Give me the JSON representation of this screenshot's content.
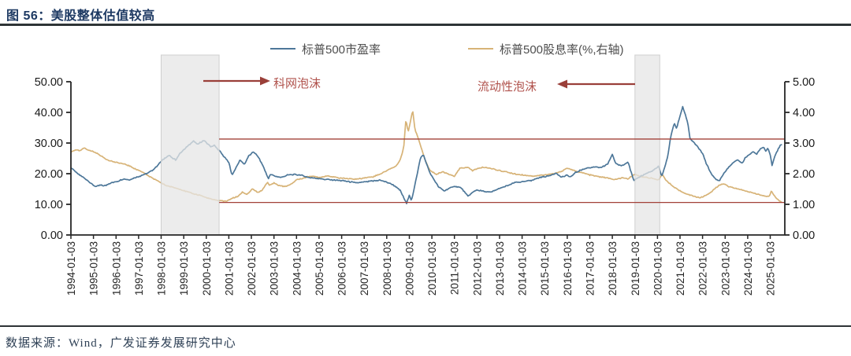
{
  "header": {
    "title": "图 56：美股整体估值较高"
  },
  "legend": {
    "items": [
      {
        "label": "标普500市盈率",
        "color": "#4d7799"
      },
      {
        "label": "标普500股息率(%,右轴)",
        "color": "#d7b377"
      }
    ]
  },
  "annotations": {
    "dotcom": "科网泡沫",
    "liquidity": "流动性泡沫",
    "text_color": "#b0524c",
    "arrow_color": "#9a3f39"
  },
  "footer": {
    "source": "数据来源：Wind，广发证券发展研究中心"
  },
  "chart_data": {
    "type": "line",
    "title": "美股整体估值较高",
    "grid": false,
    "legend_position": "top-center",
    "x_axis": {
      "tick_labels": [
        "1994-01-03",
        "1995-01-03",
        "1996-01-03",
        "1997-01-03",
        "1998-01-03",
        "1999-01-03",
        "2000-01-03",
        "2001-01-03",
        "2002-01-03",
        "2003-01-03",
        "2004-01-03",
        "2005-01-03",
        "2006-01-03",
        "2007-01-03",
        "2008-01-03",
        "2009-01-03",
        "2010-01-03",
        "2011-01-03",
        "2012-01-03",
        "2013-01-03",
        "2014-01-03",
        "2015-01-03",
        "2016-01-03",
        "2017-01-03",
        "2018-01-03",
        "2019-01-03",
        "2020-01-03",
        "2021-01-03",
        "2022-01-03",
        "2023-01-03",
        "2024-01-03",
        "2025-01-03"
      ],
      "start_year": 1994,
      "end_year": 2025.65
    },
    "y_left": {
      "ticks": [
        0,
        10,
        20,
        30,
        40,
        50
      ],
      "lim": [
        0,
        50
      ],
      "decimals": 2
    },
    "y_right": {
      "ticks": [
        0,
        1,
        2,
        3,
        4,
        5
      ],
      "lim": [
        0,
        5
      ],
      "decimals": 2
    },
    "reference_lines": {
      "color": "#a24038",
      "start_t": 2000.57,
      "pe_level_left_axis": 31.3,
      "dy_level_right_axis": 1.06
    },
    "shaded_regions": [
      {
        "name": "dotcom-bubble",
        "x0": 1998.0,
        "x1": 2000.57
      },
      {
        "name": "liquidity-bubble",
        "x0": 2019.0,
        "x1": 2020.1
      }
    ],
    "series": [
      {
        "name": "标普500市盈率",
        "axis": "left",
        "color": "#4d7799",
        "points": [
          [
            1994.0,
            22.0
          ],
          [
            1994.15,
            21.0
          ],
          [
            1994.3,
            20.0
          ],
          [
            1994.5,
            19.0
          ],
          [
            1994.7,
            18.0
          ],
          [
            1994.9,
            16.8
          ],
          [
            1995.1,
            15.7
          ],
          [
            1995.3,
            16.3
          ],
          [
            1995.5,
            16.0
          ],
          [
            1995.7,
            16.8
          ],
          [
            1995.9,
            17.2
          ],
          [
            1996.1,
            17.6
          ],
          [
            1996.35,
            18.3
          ],
          [
            1996.6,
            18.0
          ],
          [
            1996.85,
            18.8
          ],
          [
            1997.1,
            19.3
          ],
          [
            1997.35,
            20.0
          ],
          [
            1997.6,
            21.0
          ],
          [
            1997.8,
            22.3
          ],
          [
            1998.0,
            24.0
          ],
          [
            1998.2,
            25.3
          ],
          [
            1998.35,
            26.0
          ],
          [
            1998.5,
            25.0
          ],
          [
            1998.65,
            24.5
          ],
          [
            1998.8,
            26.3
          ],
          [
            1999.0,
            27.8
          ],
          [
            1999.15,
            28.8
          ],
          [
            1999.3,
            29.8
          ],
          [
            1999.45,
            30.6
          ],
          [
            1999.6,
            29.5
          ],
          [
            1999.75,
            30.3
          ],
          [
            1999.9,
            30.8
          ],
          [
            2000.05,
            29.8
          ],
          [
            2000.2,
            28.8
          ],
          [
            2000.35,
            29.3
          ],
          [
            2000.5,
            28.0
          ],
          [
            2000.6,
            27.3
          ],
          [
            2000.8,
            25.5
          ],
          [
            2001.0,
            23.5
          ],
          [
            2001.15,
            19.5
          ],
          [
            2001.35,
            22.5
          ],
          [
            2001.5,
            24.5
          ],
          [
            2001.7,
            23.0
          ],
          [
            2001.85,
            25.5
          ],
          [
            2002.1,
            27.2
          ],
          [
            2002.3,
            25.5
          ],
          [
            2002.55,
            22.0
          ],
          [
            2002.75,
            18.3
          ],
          [
            2002.85,
            19.8
          ],
          [
            2003.0,
            19.3
          ],
          [
            2003.3,
            18.8
          ],
          [
            2003.6,
            19.5
          ],
          [
            2003.9,
            19.8
          ],
          [
            2004.2,
            19.5
          ],
          [
            2004.5,
            18.8
          ],
          [
            2004.8,
            18.6
          ],
          [
            2005.1,
            18.3
          ],
          [
            2005.5,
            18.0
          ],
          [
            2005.9,
            17.8
          ],
          [
            2006.3,
            17.4
          ],
          [
            2006.7,
            17.0
          ],
          [
            2007.0,
            17.3
          ],
          [
            2007.4,
            17.6
          ],
          [
            2007.7,
            17.9
          ],
          [
            2008.0,
            17.2
          ],
          [
            2008.3,
            16.3
          ],
          [
            2008.6,
            14.5
          ],
          [
            2008.8,
            11.5
          ],
          [
            2008.88,
            10.3
          ],
          [
            2009.0,
            13.0
          ],
          [
            2009.1,
            11.2
          ],
          [
            2009.2,
            14.5
          ],
          [
            2009.35,
            20.0
          ],
          [
            2009.5,
            25.3
          ],
          [
            2009.62,
            26.2
          ],
          [
            2009.75,
            23.5
          ],
          [
            2009.9,
            20.5
          ],
          [
            2010.1,
            18.0
          ],
          [
            2010.3,
            15.6
          ],
          [
            2010.55,
            14.4
          ],
          [
            2010.8,
            15.3
          ],
          [
            2011.0,
            15.9
          ],
          [
            2011.3,
            15.4
          ],
          [
            2011.6,
            12.6
          ],
          [
            2011.8,
            13.9
          ],
          [
            2012.0,
            14.7
          ],
          [
            2012.3,
            14.2
          ],
          [
            2012.6,
            13.9
          ],
          [
            2013.0,
            15.2
          ],
          [
            2013.4,
            16.2
          ],
          [
            2013.7,
            17.2
          ],
          [
            2014.0,
            17.3
          ],
          [
            2014.4,
            17.8
          ],
          [
            2014.8,
            18.8
          ],
          [
            2015.2,
            19.3
          ],
          [
            2015.5,
            20.2
          ],
          [
            2015.75,
            18.8
          ],
          [
            2016.0,
            19.6
          ],
          [
            2016.1,
            18.7
          ],
          [
            2016.35,
            20.3
          ],
          [
            2016.6,
            21.2
          ],
          [
            2016.9,
            21.9
          ],
          [
            2017.2,
            22.2
          ],
          [
            2017.5,
            21.9
          ],
          [
            2017.8,
            23.2
          ],
          [
            2018.0,
            26.4
          ],
          [
            2018.15,
            23.2
          ],
          [
            2018.4,
            22.6
          ],
          [
            2018.7,
            23.8
          ],
          [
            2018.95,
            17.6
          ],
          [
            2019.2,
            19.0
          ],
          [
            2019.5,
            20.0
          ],
          [
            2019.8,
            21.0
          ],
          [
            2020.05,
            22.4
          ],
          [
            2020.18,
            19.2
          ],
          [
            2020.3,
            21.5
          ],
          [
            2020.45,
            25.5
          ],
          [
            2020.6,
            32.5
          ],
          [
            2020.75,
            36.5
          ],
          [
            2020.85,
            34.8
          ],
          [
            2021.0,
            38.8
          ],
          [
            2021.12,
            41.8
          ],
          [
            2021.25,
            39.0
          ],
          [
            2021.35,
            36.3
          ],
          [
            2021.45,
            31.2
          ],
          [
            2021.6,
            30.3
          ],
          [
            2021.8,
            28.6
          ],
          [
            2022.0,
            26.6
          ],
          [
            2022.15,
            23.6
          ],
          [
            2022.3,
            21.2
          ],
          [
            2022.45,
            19.2
          ],
          [
            2022.6,
            18.1
          ],
          [
            2022.75,
            17.7
          ],
          [
            2022.9,
            19.6
          ],
          [
            2023.1,
            21.6
          ],
          [
            2023.3,
            23.2
          ],
          [
            2023.55,
            24.6
          ],
          [
            2023.75,
            23.3
          ],
          [
            2023.9,
            25.3
          ],
          [
            2024.1,
            26.4
          ],
          [
            2024.25,
            27.2
          ],
          [
            2024.4,
            26.4
          ],
          [
            2024.55,
            27.9
          ],
          [
            2024.7,
            28.8
          ],
          [
            2024.8,
            27.4
          ],
          [
            2024.9,
            28.4
          ],
          [
            2025.0,
            26.2
          ],
          [
            2025.08,
            22.6
          ],
          [
            2025.15,
            24.6
          ],
          [
            2025.25,
            26.6
          ],
          [
            2025.35,
            28.0
          ],
          [
            2025.45,
            29.2
          ],
          [
            2025.55,
            29.6
          ]
        ]
      },
      {
        "name": "标普500股息率(%,右轴)",
        "axis": "right",
        "color": "#d7b377",
        "points": [
          [
            1994.0,
            2.7
          ],
          [
            1994.2,
            2.78
          ],
          [
            1994.4,
            2.74
          ],
          [
            1994.6,
            2.84
          ],
          [
            1994.8,
            2.76
          ],
          [
            1995.0,
            2.72
          ],
          [
            1995.3,
            2.6
          ],
          [
            1995.6,
            2.46
          ],
          [
            1995.9,
            2.38
          ],
          [
            1996.2,
            2.34
          ],
          [
            1996.5,
            2.28
          ],
          [
            1996.9,
            2.14
          ],
          [
            1997.2,
            2.04
          ],
          [
            1997.5,
            1.9
          ],
          [
            1997.9,
            1.74
          ],
          [
            1998.2,
            1.62
          ],
          [
            1998.5,
            1.56
          ],
          [
            1998.8,
            1.5
          ],
          [
            1999.1,
            1.42
          ],
          [
            1999.4,
            1.35
          ],
          [
            1999.7,
            1.3
          ],
          [
            2000.0,
            1.22
          ],
          [
            2000.3,
            1.15
          ],
          [
            2000.6,
            1.12
          ],
          [
            2000.9,
            1.1
          ],
          [
            2001.1,
            1.18
          ],
          [
            2001.4,
            1.26
          ],
          [
            2001.6,
            1.4
          ],
          [
            2001.8,
            1.32
          ],
          [
            2002.05,
            1.5
          ],
          [
            2002.3,
            1.38
          ],
          [
            2002.5,
            1.48
          ],
          [
            2002.7,
            1.72
          ],
          [
            2002.8,
            1.62
          ],
          [
            2003.0,
            1.7
          ],
          [
            2003.2,
            1.62
          ],
          [
            2003.5,
            1.58
          ],
          [
            2003.7,
            1.63
          ],
          [
            2004.0,
            1.8
          ],
          [
            2004.3,
            1.85
          ],
          [
            2004.6,
            1.92
          ],
          [
            2005.0,
            1.88
          ],
          [
            2005.4,
            1.93
          ],
          [
            2005.8,
            1.87
          ],
          [
            2006.2,
            1.84
          ],
          [
            2006.6,
            1.82
          ],
          [
            2007.0,
            1.86
          ],
          [
            2007.4,
            1.9
          ],
          [
            2007.8,
            2.02
          ],
          [
            2008.1,
            2.14
          ],
          [
            2008.4,
            2.24
          ],
          [
            2008.6,
            2.45
          ],
          [
            2008.75,
            2.85
          ],
          [
            2008.85,
            3.78
          ],
          [
            2008.95,
            3.35
          ],
          [
            2009.05,
            3.7
          ],
          [
            2009.15,
            4.08
          ],
          [
            2009.25,
            3.45
          ],
          [
            2009.4,
            3.15
          ],
          [
            2009.55,
            2.8
          ],
          [
            2009.7,
            2.45
          ],
          [
            2009.9,
            2.12
          ],
          [
            2010.2,
            1.98
          ],
          [
            2010.5,
            2.06
          ],
          [
            2010.8,
            1.96
          ],
          [
            2011.0,
            1.92
          ],
          [
            2011.25,
            2.18
          ],
          [
            2011.6,
            2.2
          ],
          [
            2011.8,
            2.1
          ],
          [
            2012.0,
            2.16
          ],
          [
            2012.3,
            2.21
          ],
          [
            2012.7,
            2.16
          ],
          [
            2013.0,
            2.1
          ],
          [
            2013.3,
            2.06
          ],
          [
            2013.6,
            2.0
          ],
          [
            2014.0,
            1.96
          ],
          [
            2014.5,
            1.92
          ],
          [
            2015.0,
            1.96
          ],
          [
            2015.4,
            2.0
          ],
          [
            2015.7,
            2.06
          ],
          [
            2016.0,
            2.18
          ],
          [
            2016.3,
            2.1
          ],
          [
            2016.6,
            2.04
          ],
          [
            2017.0,
            1.96
          ],
          [
            2017.4,
            1.9
          ],
          [
            2017.8,
            1.86
          ],
          [
            2018.1,
            1.8
          ],
          [
            2018.4,
            1.86
          ],
          [
            2018.7,
            1.83
          ],
          [
            2018.95,
            1.98
          ],
          [
            2019.2,
            1.92
          ],
          [
            2019.5,
            1.88
          ],
          [
            2019.8,
            1.84
          ],
          [
            2020.05,
            1.8
          ],
          [
            2020.2,
            1.98
          ],
          [
            2020.35,
            1.82
          ],
          [
            2020.5,
            1.7
          ],
          [
            2020.7,
            1.58
          ],
          [
            2020.9,
            1.48
          ],
          [
            2021.1,
            1.4
          ],
          [
            2021.35,
            1.32
          ],
          [
            2021.6,
            1.27
          ],
          [
            2021.9,
            1.21
          ],
          [
            2022.1,
            1.28
          ],
          [
            2022.3,
            1.36
          ],
          [
            2022.5,
            1.48
          ],
          [
            2022.7,
            1.6
          ],
          [
            2022.9,
            1.68
          ],
          [
            2023.1,
            1.6
          ],
          [
            2023.35,
            1.54
          ],
          [
            2023.6,
            1.5
          ],
          [
            2023.9,
            1.44
          ],
          [
            2024.2,
            1.38
          ],
          [
            2024.5,
            1.32
          ],
          [
            2024.75,
            1.27
          ],
          [
            2024.95,
            1.25
          ],
          [
            2025.05,
            1.44
          ],
          [
            2025.15,
            1.3
          ],
          [
            2025.3,
            1.18
          ],
          [
            2025.45,
            1.1
          ],
          [
            2025.55,
            1.06
          ]
        ]
      }
    ]
  }
}
